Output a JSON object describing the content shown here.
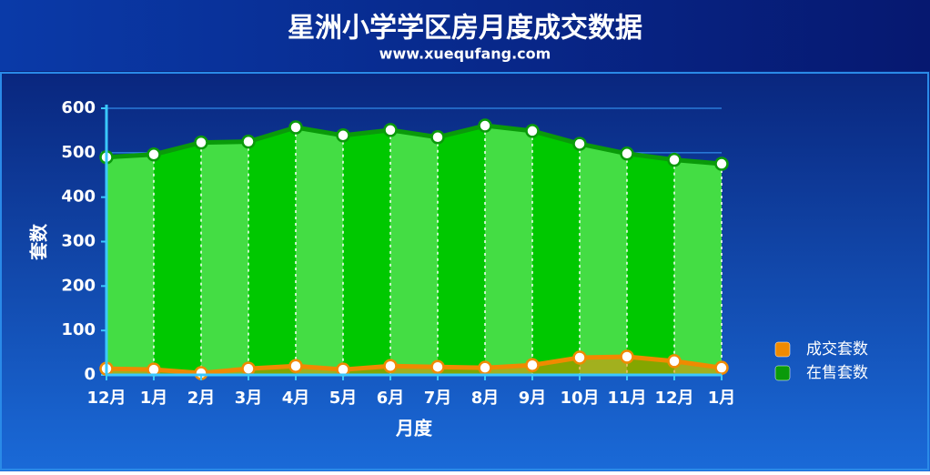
{
  "chart_data": {
    "type": "area",
    "title": "星洲小学学区房月度成交数据",
    "subtitle": "www.xuequfang.com",
    "x_label": "月度",
    "y_label": "套数",
    "categories": [
      "12月",
      "1月",
      "2月",
      "3月",
      "4月",
      "5月",
      "6月",
      "7月",
      "8月",
      "9月",
      "10月",
      "11月",
      "12月",
      "1月"
    ],
    "series": [
      {
        "name": "成交套数",
        "color": "#f08a00",
        "values": [
          14,
          12,
          4,
          14,
          20,
          12,
          20,
          18,
          16,
          22,
          39,
          41,
          31,
          16
        ]
      },
      {
        "name": "在售套数",
        "color": "#0a9a0a",
        "values": [
          490,
          496,
          523,
          525,
          557,
          539,
          551,
          535,
          561,
          549,
          520,
          498,
          484,
          475
        ]
      }
    ],
    "ylim": [
      0,
      600
    ],
    "yticks": [
      0,
      100,
      200,
      300,
      400,
      500,
      600
    ],
    "grid": true,
    "legend": "right"
  }
}
